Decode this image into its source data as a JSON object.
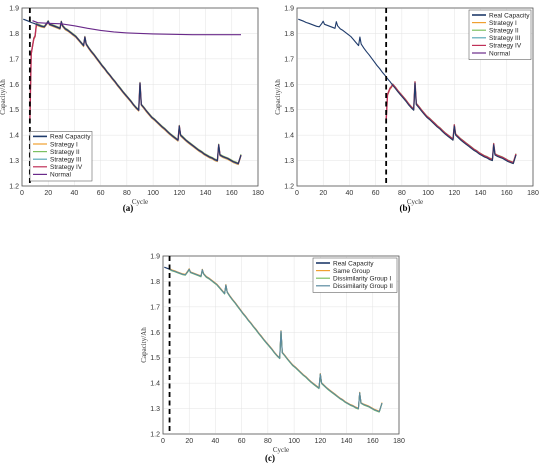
{
  "colors": {
    "real": "#1f3b6b",
    "s1": "#f0a030",
    "s2": "#7cc060",
    "s3": "#5aa8b8",
    "s4": "#c03058",
    "normal": "#6a2a8a",
    "same": "#f0a030",
    "dis1": "#7cc060",
    "dis2": "#5a8aa0"
  },
  "chart_data": [
    {
      "type": "line",
      "caption": "(a)",
      "xlabel": "Cycle",
      "ylabel": "Capacity/Ah",
      "xlim": [
        0,
        180
      ],
      "ylim": [
        1.2,
        1.9
      ],
      "xticks": [
        "0",
        "20",
        "40",
        "60",
        "80",
        "100",
        "120",
        "140",
        "160",
        "180"
      ],
      "yticks": [
        "1.2",
        "1.3",
        "1.4",
        "1.5",
        "1.6",
        "1.7",
        "1.8",
        "1.9"
      ],
      "split_x": 6,
      "grid": true,
      "legend_position": "bottom-left",
      "legend": [
        "Real Capacity",
        "Strategy I",
        "Strategy II",
        "Strategy III",
        "Strategy IV",
        "Normal"
      ],
      "normal_y": [
        1.85,
        1.842,
        1.84,
        1.838,
        1.83,
        1.82,
        1.812,
        1.806,
        1.802,
        1.8,
        1.798,
        1.797,
        1.796,
        1.795,
        1.795,
        1.795,
        1.795
      ],
      "normal_x": [
        8,
        12,
        20,
        30,
        40,
        50,
        60,
        70,
        80,
        90,
        100,
        110,
        120,
        130,
        140,
        150,
        167
      ]
    },
    {
      "type": "line",
      "caption": "(b)",
      "xlabel": "Cycle",
      "ylabel": "Capacity/Ah",
      "xlim": [
        0,
        180
      ],
      "ylim": [
        1.2,
        1.9
      ],
      "xticks": [
        "0",
        "20",
        "40",
        "60",
        "80",
        "100",
        "120",
        "140",
        "160",
        "180"
      ],
      "yticks": [
        "1.2",
        "1.3",
        "1.4",
        "1.5",
        "1.6",
        "1.7",
        "1.8",
        "1.9"
      ],
      "split_x": 68,
      "grid": true,
      "legend_position": "top-right",
      "legend": [
        "Real Capacity",
        "Strategy I",
        "Strategy II",
        "Strategy III",
        "Strategy IV",
        "Normal"
      ]
    },
    {
      "type": "line",
      "caption": "(c)",
      "xlabel": "Cycle",
      "ylabel": "Capacity/Ah",
      "xlim": [
        0,
        180
      ],
      "ylim": [
        1.2,
        1.9
      ],
      "xticks": [
        "0",
        "20",
        "40",
        "60",
        "80",
        "100",
        "120",
        "140",
        "160",
        "180"
      ],
      "yticks": [
        "1.2",
        "1.3",
        "1.4",
        "1.5",
        "1.6",
        "1.7",
        "1.8",
        "1.9"
      ],
      "split_x": 5,
      "grid": true,
      "legend_position": "top-right",
      "legend": [
        "Real Capacity",
        "Same Group",
        "Dissimilarity Group I",
        "Dissimilarity Group II"
      ]
    }
  ],
  "real_capacity": {
    "x": [
      1,
      3,
      5,
      7,
      9,
      11,
      13,
      15,
      17,
      19,
      20,
      21,
      23,
      25,
      27,
      29,
      30,
      31,
      33,
      35,
      37,
      39,
      41,
      43,
      45,
      47,
      48,
      49,
      51,
      53,
      55,
      57,
      59,
      61,
      63,
      65,
      67,
      69,
      71,
      73,
      75,
      77,
      79,
      81,
      83,
      85,
      87,
      89,
      90,
      91,
      93,
      95,
      97,
      99,
      101,
      103,
      105,
      107,
      109,
      111,
      113,
      115,
      117,
      119,
      120,
      121,
      123,
      125,
      127,
      129,
      131,
      133,
      135,
      137,
      139,
      141,
      143,
      145,
      147,
      149,
      150,
      151,
      153,
      155,
      157,
      159,
      161,
      163,
      165,
      167
    ],
    "y": [
      1.856,
      1.852,
      1.848,
      1.843,
      1.84,
      1.836,
      1.832,
      1.828,
      1.826,
      1.84,
      1.848,
      1.836,
      1.832,
      1.828,
      1.824,
      1.82,
      1.846,
      1.83,
      1.818,
      1.812,
      1.804,
      1.796,
      1.788,
      1.776,
      1.764,
      1.752,
      1.786,
      1.758,
      1.742,
      1.728,
      1.716,
      1.702,
      1.688,
      1.674,
      1.662,
      1.648,
      1.636,
      1.622,
      1.61,
      1.596,
      1.584,
      1.57,
      1.558,
      1.546,
      1.534,
      1.52,
      1.508,
      1.498,
      1.605,
      1.52,
      1.508,
      1.494,
      1.482,
      1.47,
      1.462,
      1.452,
      1.442,
      1.432,
      1.424,
      1.414,
      1.404,
      1.396,
      1.388,
      1.38,
      1.436,
      1.4,
      1.39,
      1.38,
      1.372,
      1.364,
      1.356,
      1.348,
      1.34,
      1.334,
      1.326,
      1.32,
      1.314,
      1.31,
      1.304,
      1.3,
      1.362,
      1.322,
      1.316,
      1.312,
      1.308,
      1.302,
      1.296,
      1.292,
      1.288,
      1.322
    ]
  }
}
